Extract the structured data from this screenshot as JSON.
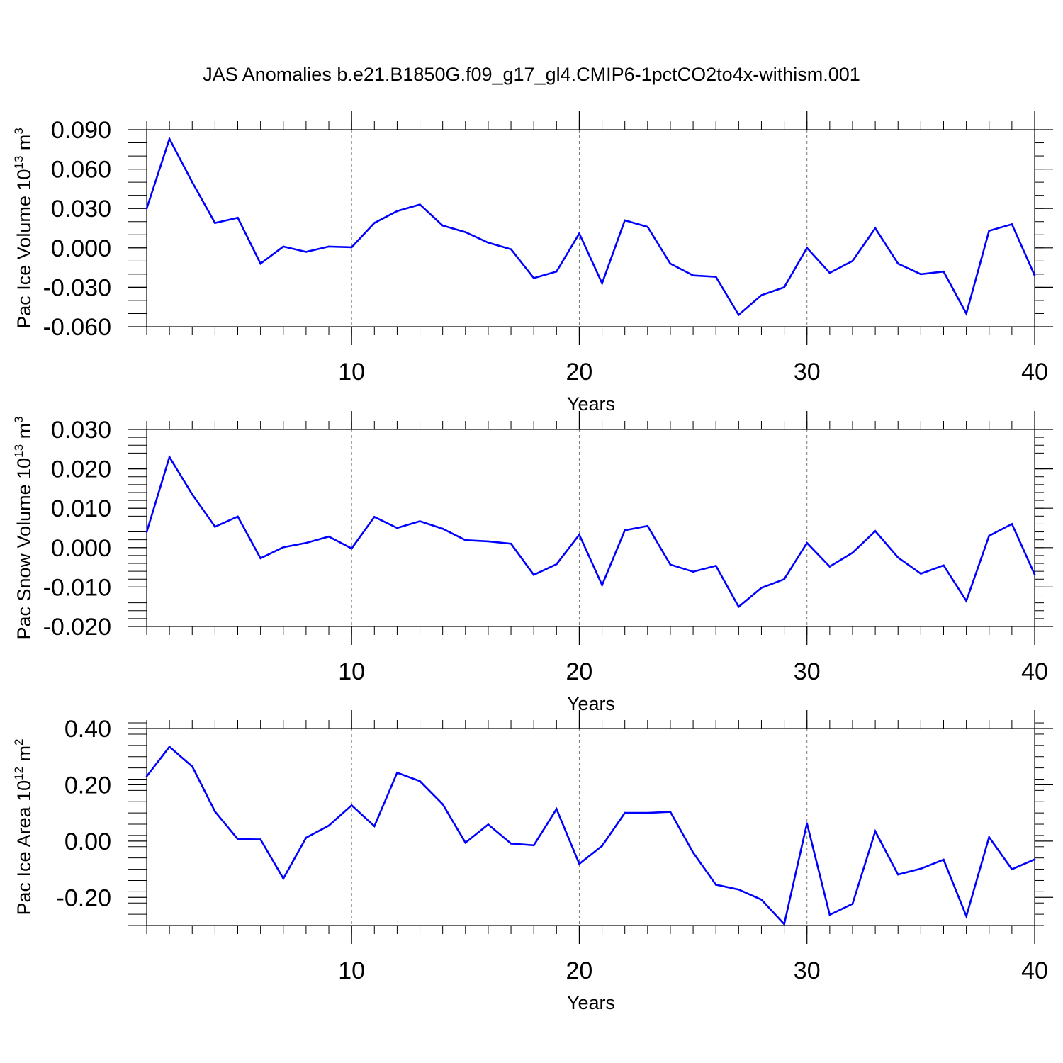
{
  "figure": {
    "title": "JAS Anomalies b.e21.B1850G.f09_g17_gl4.CMIP6-1pctCO2to4x-withism.001"
  },
  "chart_data": [
    {
      "type": "line",
      "title": "JAS Anomalies b.e21.B1850G.f09_g17_gl4.CMIP6-1pctCO2to4x-withism.001",
      "xlabel": "Years",
      "ylabel": "Pac Ice Volume 10",
      "ylabel_exp": "13",
      "ylabel_unit": " m",
      "ylabel_unit_exp": "3",
      "xlim": [
        1,
        40
      ],
      "ylim": [
        -0.06,
        0.09
      ],
      "xticks": [
        10,
        20,
        30,
        40
      ],
      "xtick_labels": [
        "10",
        "20",
        "30",
        "40"
      ],
      "yticks": [
        -0.06,
        -0.03,
        0,
        0.03,
        0.06,
        0.09
      ],
      "ytick_labels": [
        "-0.060",
        "-0.030",
        "0.000",
        "0.030",
        "0.060",
        "0.090"
      ],
      "grid": "dashed vertical at x ticks",
      "color": "#0000ff",
      "series": [
        {
          "name": "Pac Ice Volume",
          "x": [
            1,
            2,
            3,
            4,
            5,
            6,
            7,
            8,
            9,
            10,
            11,
            12,
            13,
            14,
            15,
            16,
            17,
            18,
            19,
            20,
            21,
            22,
            23,
            24,
            25,
            26,
            27,
            28,
            29,
            30,
            31,
            32,
            33,
            34,
            35,
            36,
            37,
            38,
            39,
            40
          ],
          "values": [
            0.03,
            0.083,
            0.05,
            0.019,
            0.023,
            -0.012,
            0.001,
            -0.003,
            0.001,
            0.0005,
            0.019,
            0.028,
            0.033,
            0.017,
            0.012,
            0.004,
            -0.001,
            -0.023,
            -0.018,
            0.011,
            -0.027,
            0.021,
            0.016,
            -0.012,
            -0.021,
            -0.022,
            -0.051,
            -0.036,
            -0.03,
            0.0,
            -0.019,
            -0.01,
            0.015,
            -0.012,
            -0.02,
            -0.018,
            -0.05,
            0.013,
            0.018,
            -0.021
          ]
        }
      ]
    },
    {
      "type": "line",
      "xlabel": "Years",
      "ylabel": "Pac Snow Volume 10",
      "ylabel_exp": "13",
      "ylabel_unit": " m",
      "ylabel_unit_exp": "3",
      "xlim": [
        1,
        40
      ],
      "ylim": [
        -0.02,
        0.03
      ],
      "xticks": [
        10,
        20,
        30,
        40
      ],
      "xtick_labels": [
        "10",
        "20",
        "30",
        "40"
      ],
      "yticks": [
        -0.02,
        -0.01,
        0,
        0.01,
        0.02,
        0.03
      ],
      "ytick_labels": [
        "-0.020",
        "-0.010",
        "0.000",
        "0.010",
        "0.020",
        "0.030"
      ],
      "grid": "dashed vertical at x ticks",
      "color": "#0000ff",
      "series": [
        {
          "name": "Pac Snow Volume",
          "x": [
            1,
            2,
            3,
            4,
            5,
            6,
            7,
            8,
            9,
            10,
            11,
            12,
            13,
            14,
            15,
            16,
            17,
            18,
            19,
            20,
            21,
            22,
            23,
            24,
            25,
            26,
            27,
            28,
            29,
            30,
            31,
            32,
            33,
            34,
            35,
            36,
            37,
            38,
            39,
            40
          ],
          "values": [
            0.004,
            0.023,
            0.0135,
            0.0053,
            0.0079,
            -0.0027,
            0.0001,
            0.0012,
            0.0028,
            -0.0002,
            0.0078,
            0.005,
            0.0067,
            0.0048,
            0.0019,
            0.0016,
            0.001,
            -0.0069,
            -0.0042,
            0.0033,
            -0.0095,
            0.0044,
            0.0055,
            -0.0043,
            -0.0061,
            -0.0046,
            -0.015,
            -0.0102,
            -0.008,
            0.0012,
            -0.0048,
            -0.0013,
            0.0042,
            -0.0025,
            -0.0066,
            -0.0045,
            -0.0135,
            0.003,
            0.006,
            -0.0068
          ]
        }
      ]
    },
    {
      "type": "line",
      "xlabel": "Years",
      "ylabel": "Pac Ice Area 10",
      "ylabel_exp": "12",
      "ylabel_unit": " m",
      "ylabel_unit_exp": "2",
      "xlim": [
        1,
        40
      ],
      "ylim": [
        -0.3,
        0.4
      ],
      "xticks": [
        10,
        20,
        30,
        40
      ],
      "xtick_labels": [
        "10",
        "20",
        "30",
        "40"
      ],
      "yticks": [
        -0.2,
        0,
        0.2,
        0.4
      ],
      "ytick_labels": [
        "-0.20",
        "0.00",
        "0.20",
        "0.40"
      ],
      "grid": "dashed vertical at x ticks",
      "color": "#0000ff",
      "series": [
        {
          "name": "Pac Ice Area",
          "x": [
            1,
            2,
            3,
            4,
            5,
            6,
            7,
            8,
            9,
            10,
            11,
            12,
            13,
            14,
            15,
            16,
            17,
            18,
            19,
            20,
            21,
            22,
            23,
            24,
            25,
            26,
            27,
            28,
            29,
            30,
            31,
            32,
            33,
            34,
            35,
            36,
            37,
            38,
            39,
            40
          ],
          "values": [
            0.23,
            0.335,
            0.265,
            0.105,
            0.007,
            0.006,
            -0.133,
            0.012,
            0.055,
            0.127,
            0.053,
            0.243,
            0.213,
            0.131,
            -0.006,
            0.059,
            -0.009,
            -0.015,
            0.114,
            -0.081,
            -0.017,
            0.1,
            0.1,
            0.104,
            -0.041,
            -0.155,
            -0.172,
            -0.208,
            -0.295,
            0.063,
            -0.262,
            -0.223,
            0.035,
            -0.119,
            -0.098,
            -0.066,
            -0.267,
            0.014,
            -0.1,
            -0.065
          ]
        }
      ]
    }
  ]
}
